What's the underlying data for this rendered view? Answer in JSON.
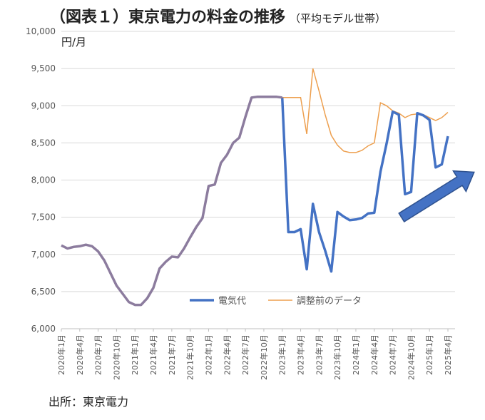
{
  "title": "（図表１）東京電力の料金の推移",
  "subtitle": "（平均モデル世帯）",
  "unit": "円/月",
  "source": "出所：東京電力",
  "colors": {
    "electricity": "#4472C4",
    "pre_adjust": "#ED9F4E",
    "overlap": "#8C7C9E",
    "arrow": "#4472C4",
    "axis": "#BFBFBF"
  },
  "chart_data": {
    "type": "line",
    "ylim": [
      6000,
      10000
    ],
    "yticks": [
      6000,
      6500,
      7000,
      7500,
      8000,
      8500,
      9000,
      9500,
      10000
    ],
    "ytick_labels": [
      "6,000",
      "6,500",
      "7,000",
      "7,500",
      "8,000",
      "8,500",
      "9,000",
      "9,500",
      "10,000"
    ],
    "x": [
      "2020年1月",
      "2020年2月",
      "2020年3月",
      "2020年4月",
      "2020年5月",
      "2020年6月",
      "2020年7月",
      "2020年8月",
      "2020年9月",
      "2020年10月",
      "2020年11月",
      "2020年12月",
      "2021年1月",
      "2021年2月",
      "2021年3月",
      "2021年4月",
      "2021年5月",
      "2021年6月",
      "2021年7月",
      "2021年8月",
      "2021年9月",
      "2021年10月",
      "2021年11月",
      "2021年12月",
      "2022年1月",
      "2022年2月",
      "2022年3月",
      "2022年4月",
      "2022年5月",
      "2022年6月",
      "2022年7月",
      "2022年8月",
      "2022年9月",
      "2022年10月",
      "2022年11月",
      "2022年12月",
      "2023年1月",
      "2023年2月",
      "2023年3月",
      "2023年4月",
      "2023年5月",
      "2023年6月",
      "2023年7月",
      "2023年8月",
      "2023年9月",
      "2023年10月",
      "2023年11月",
      "2023年12月",
      "2024年1月",
      "2024年2月",
      "2024年3月",
      "2024年4月",
      "2024年5月",
      "2024年6月",
      "2024年7月",
      "2024年8月",
      "2024年9月",
      "2024年10月",
      "2024年11月",
      "2024年12月",
      "2025年1月",
      "2025年2月",
      "2025年3月",
      "2025年4月"
    ],
    "x_tick_labels": [
      "2020年1月",
      "2020年4月",
      "2020年7月",
      "2020年10月",
      "2021年1月",
      "2021年4月",
      "2021年7月",
      "2021年10月",
      "2022年1月",
      "2022年4月",
      "2022年7月",
      "2022年10月",
      "2023年1月",
      "2023年4月",
      "2023年7月",
      "2023年10月",
      "2024年1月",
      "2024年4月",
      "2024年7月",
      "2024年10月",
      "2025年1月",
      "2025年4月"
    ],
    "series": [
      {
        "name": "電気代",
        "values": [
          7120,
          7080,
          7100,
          7110,
          7130,
          7110,
          7040,
          6920,
          6750,
          6580,
          6470,
          6360,
          6320,
          6320,
          6410,
          6550,
          6810,
          6900,
          6970,
          6960,
          7080,
          7230,
          7370,
          7490,
          7920,
          7940,
          8230,
          8340,
          8500,
          8570,
          8850,
          9110,
          9120,
          9120,
          9120,
          9120,
          9110,
          7300,
          7300,
          7340,
          6800,
          7680,
          7300,
          7050,
          6770,
          7570,
          7510,
          7460,
          7470,
          7490,
          7550,
          7560,
          8110,
          8490,
          8920,
          8880,
          7810,
          7840,
          8900,
          8870,
          8810,
          8170,
          8210,
          8590
        ]
      },
      {
        "name": "調整前のデータ",
        "values": [
          7120,
          7080,
          7100,
          7110,
          7130,
          7110,
          7040,
          6920,
          6750,
          6580,
          6470,
          6360,
          6320,
          6320,
          6410,
          6550,
          6810,
          6900,
          6970,
          6960,
          7080,
          7230,
          7370,
          7490,
          7920,
          7940,
          8230,
          8340,
          8500,
          8570,
          8850,
          9110,
          9120,
          9120,
          9120,
          9120,
          9110,
          9110,
          9110,
          9110,
          8620,
          9500,
          9200,
          8880,
          8600,
          8470,
          8390,
          8370,
          8370,
          8400,
          8460,
          8500,
          9040,
          9000,
          8930,
          8900,
          8840,
          8880,
          8890,
          8880,
          8840,
          8800,
          8840,
          8910
        ]
      }
    ],
    "overlap_until_index": 36,
    "legend": "bottom-center",
    "annotations": [
      "upward-trend-arrow"
    ]
  }
}
